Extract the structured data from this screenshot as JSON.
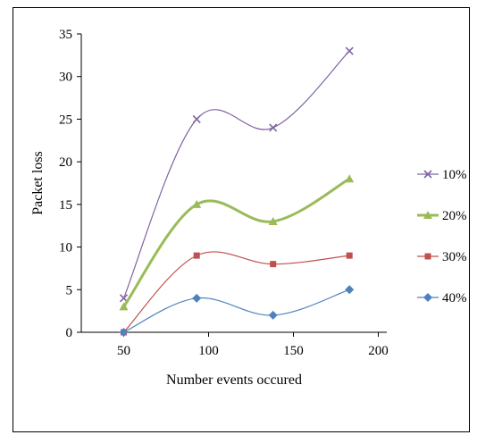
{
  "chart_data": {
    "type": "line",
    "title": "",
    "xlabel": "Number events  occured",
    "ylabel": "Packet  loss",
    "xlim": [
      25,
      205
    ],
    "ylim": [
      0,
      35
    ],
    "x_ticks": [
      50,
      100,
      150,
      200
    ],
    "y_ticks": [
      0,
      5,
      10,
      15,
      20,
      25,
      30,
      35
    ],
    "grid": false,
    "smooth": true,
    "legend_position": "right",
    "x": [
      50,
      93,
      138,
      183
    ],
    "series": [
      {
        "name": "10%",
        "values": [
          4,
          25,
          24,
          33
        ],
        "color": "#8064a2",
        "marker": "x",
        "stroke_width": 1.2
      },
      {
        "name": "20%",
        "values": [
          3,
          15,
          13,
          18
        ],
        "color": "#9bbb59",
        "marker": "triangle",
        "stroke_width": 3
      },
      {
        "name": "30%",
        "values": [
          0,
          9,
          8,
          9
        ],
        "color": "#c0504d",
        "marker": "square",
        "stroke_width": 1.2
      },
      {
        "name": "40%",
        "values": [
          0,
          4,
          2,
          5
        ],
        "color": "#4f81bd",
        "marker": "diamond",
        "stroke_width": 1.2
      }
    ]
  }
}
